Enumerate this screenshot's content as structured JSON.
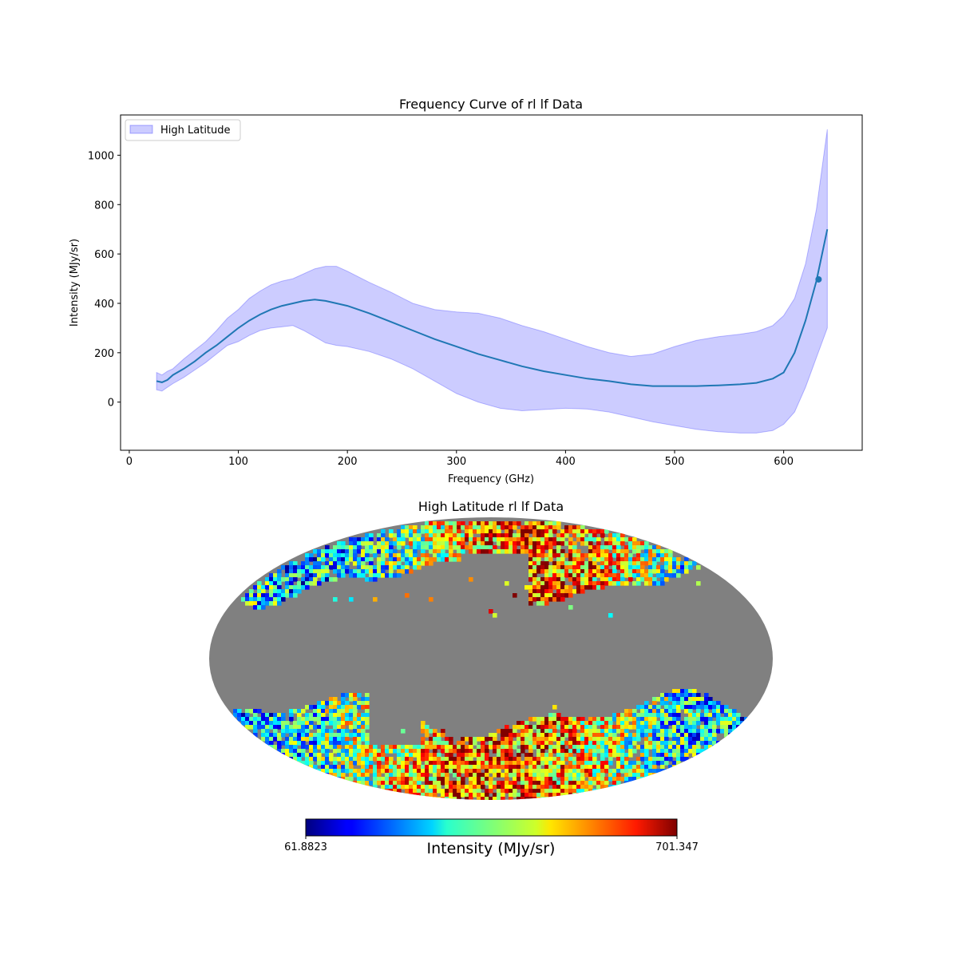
{
  "chart_data": [
    {
      "type": "line",
      "title": "Frequency Curve of rl lf Data",
      "xlabel": "Frequency (GHz)",
      "ylabel": "Intensity (MJy/sr)",
      "xlim": [
        -8,
        672
      ],
      "ylim": [
        -195,
        1163
      ],
      "xticks": [
        0,
        100,
        200,
        300,
        400,
        500,
        600
      ],
      "yticks": [
        0,
        200,
        400,
        600,
        800,
        1000
      ],
      "grid": false,
      "legend": {
        "position": "top-left",
        "entries": [
          "High Latitude"
        ]
      },
      "colors": {
        "line": "#1f77b4",
        "band": "#0000ff",
        "band_alpha": 0.2
      },
      "band_name": "High Latitude",
      "x": [
        25,
        30,
        35,
        40,
        50,
        60,
        70,
        80,
        90,
        100,
        110,
        120,
        130,
        140,
        150,
        160,
        170,
        180,
        190,
        200,
        220,
        240,
        260,
        280,
        300,
        320,
        340,
        360,
        380,
        400,
        420,
        440,
        460,
        480,
        500,
        520,
        540,
        560,
        575,
        590,
        600,
        610,
        620,
        630,
        640
      ],
      "mean": [
        85,
        80,
        90,
        110,
        135,
        165,
        200,
        230,
        265,
        300,
        330,
        355,
        375,
        390,
        400,
        410,
        415,
        410,
        400,
        390,
        360,
        325,
        290,
        255,
        225,
        195,
        170,
        145,
        125,
        110,
        95,
        85,
        72,
        65,
        65,
        65,
        68,
        72,
        78,
        95,
        120,
        200,
        330,
        490,
        700
      ],
      "upper": [
        120,
        110,
        125,
        135,
        175,
        210,
        245,
        290,
        340,
        375,
        420,
        450,
        475,
        490,
        500,
        520,
        540,
        550,
        550,
        530,
        485,
        445,
        400,
        375,
        365,
        360,
        340,
        310,
        285,
        255,
        225,
        200,
        185,
        195,
        225,
        250,
        265,
        275,
        285,
        310,
        350,
        420,
        560,
        780,
        1105
      ],
      "lower": [
        50,
        45,
        60,
        75,
        100,
        130,
        160,
        195,
        230,
        245,
        270,
        290,
        300,
        305,
        310,
        290,
        265,
        240,
        230,
        225,
        205,
        175,
        135,
        85,
        35,
        0,
        -25,
        -35,
        -30,
        -25,
        -28,
        -40,
        -60,
        -80,
        -95,
        -110,
        -120,
        -125,
        -125,
        -115,
        -90,
        -40,
        60,
        180,
        300
      ],
      "marker": {
        "x": 632,
        "y": 497
      }
    },
    {
      "type": "heatmap",
      "title": "High Latitude rl lf Data",
      "projection": "mollweide",
      "colormap": "jet",
      "masked_color": "#808080",
      "colorbar": {
        "min": "61.8823",
        "max": "701.347",
        "label": "Intensity (MJy/sr)"
      }
    }
  ]
}
